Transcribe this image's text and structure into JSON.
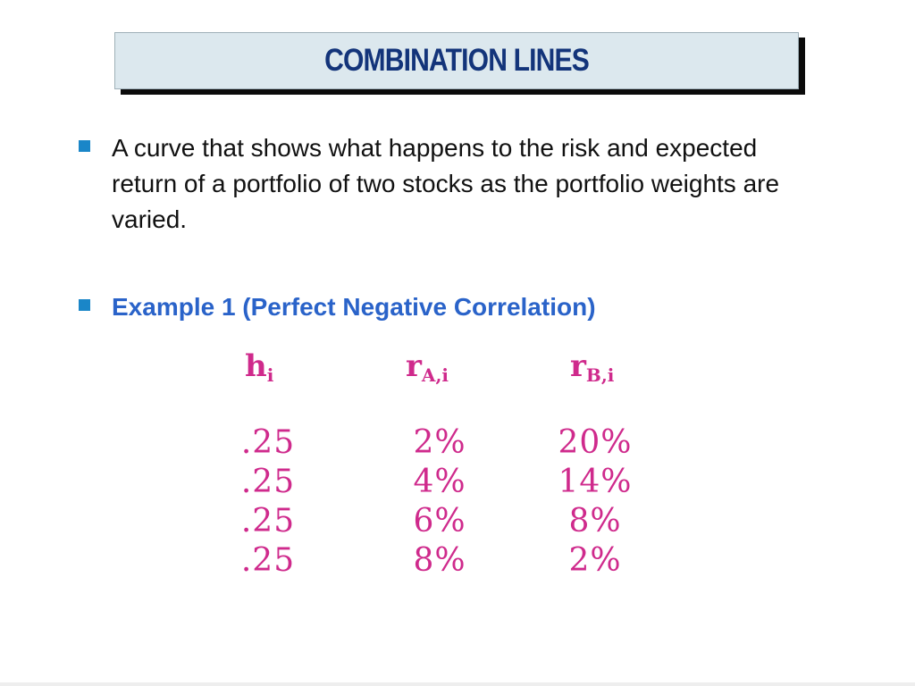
{
  "title": "COMBINATION LINES",
  "bullets": [
    {
      "text": "A curve that shows what happens to the risk and expected return of a portfolio of two stocks as the portfolio weights are varied."
    },
    {
      "text": "Example 1 (Perfect Negative Correlation)"
    }
  ],
  "table": {
    "headers": [
      {
        "main": "h",
        "sub": "i"
      },
      {
        "main": "r",
        "sub": "A,i"
      },
      {
        "main": "r",
        "sub": "B,i"
      }
    ],
    "rows": [
      [
        ".25",
        "2%",
        "20%"
      ],
      [
        ".25",
        "4%",
        "14%"
      ],
      [
        ".25",
        "6%",
        "8%"
      ],
      [
        ".25",
        "8%",
        "2%"
      ]
    ]
  },
  "colors": {
    "title_text": "#13347a",
    "title_bg": "#dce8ee",
    "bullet_square": "#1a86c8",
    "example_text": "#2a63c9",
    "table_text": "#cf2a8c"
  }
}
